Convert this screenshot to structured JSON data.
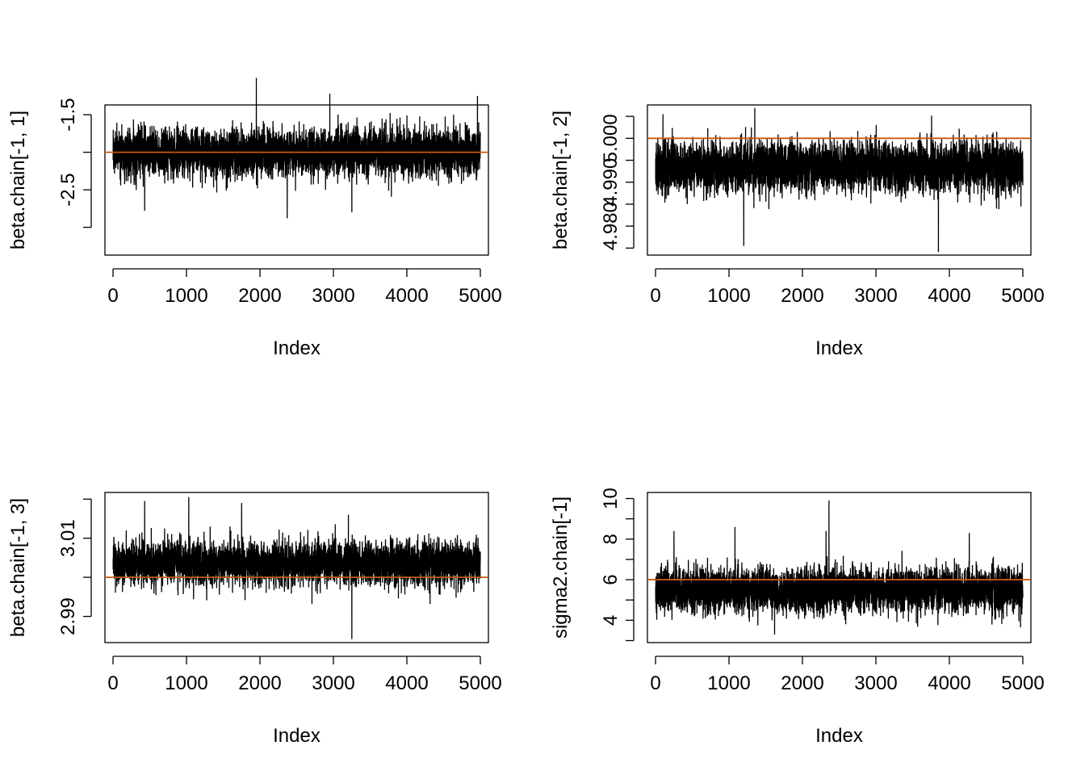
{
  "chart_data": [
    {
      "type": "line",
      "title": "",
      "xlabel": "Index",
      "ylabel": "beta.chain[-1, 1]",
      "xlim": [
        -110,
        5110
      ],
      "ylim": [
        -3.37,
        -1.37
      ],
      "xticks": [
        0,
        1000,
        2000,
        3000,
        4000,
        5000
      ],
      "xtick_labels": [
        "0",
        "1000",
        "2000",
        "3000",
        "4000",
        "5000"
      ],
      "yticks": [
        -3.0,
        -2.5,
        -2.0,
        -1.5
      ],
      "ytick_labels": [
        "",
        "-2.5",
        "",
        "-1.5"
      ],
      "hline": -2.0,
      "hline_color": "#C55A11",
      "series": [
        {
          "n": 5000,
          "center": -2.0,
          "sd": 0.16,
          "min": -2.88,
          "max": -1.01,
          "spikes": [
            [
              1950,
              -1.01
            ],
            [
              2370,
              -2.88
            ],
            [
              2950,
              -1.22
            ],
            [
              4960,
              -1.25
            ],
            [
              430,
              -2.78
            ],
            [
              3250,
              -2.8
            ]
          ]
        }
      ]
    },
    {
      "type": "line",
      "title": "",
      "xlabel": "Index",
      "ylabel": "beta.chain[-1, 2]",
      "xlim": [
        -110,
        5110
      ],
      "ylim": [
        4.9734,
        5.0076
      ],
      "xticks": [
        0,
        1000,
        2000,
        3000,
        4000,
        5000
      ],
      "xtick_labels": [
        "0",
        "1000",
        "2000",
        "3000",
        "4000",
        "5000"
      ],
      "yticks": [
        4.975,
        4.98,
        4.985,
        4.99,
        4.995,
        5.0,
        5.005
      ],
      "ytick_labels": [
        "",
        "4.980",
        "",
        "4.990",
        "",
        "5.000",
        ""
      ],
      "hline": 5.0,
      "hline_color": "#C55A11",
      "series": [
        {
          "n": 5000,
          "center": 4.9935,
          "sd": 0.0028,
          "min": 4.9741,
          "max": 5.0069,
          "spikes": [
            [
              1350,
              5.0069
            ],
            [
              3850,
              4.9741
            ],
            [
              1200,
              4.9755
            ],
            [
              100,
              5.0055
            ]
          ]
        }
      ]
    },
    {
      "type": "line",
      "title": "",
      "xlabel": "Index",
      "ylabel": "beta.chain[-1, 3]",
      "xlim": [
        -110,
        5110
      ],
      "ylim": [
        2.9833,
        3.0217
      ],
      "xticks": [
        0,
        1000,
        2000,
        3000,
        4000,
        5000
      ],
      "xtick_labels": [
        "0",
        "1000",
        "2000",
        "3000",
        "4000",
        "5000"
      ],
      "yticks": [
        2.99,
        3.0,
        3.01,
        3.02
      ],
      "ytick_labels": [
        "2.99",
        "",
        "3.01",
        ""
      ],
      "hline": 3.0,
      "hline_color": "#C55A11",
      "series": [
        {
          "n": 5000,
          "center": 3.0036,
          "sd": 0.0028,
          "min": 2.9842,
          "max": 3.0205,
          "spikes": [
            [
              1030,
              3.0205
            ],
            [
              3250,
              2.9842
            ],
            [
              430,
              3.0195
            ],
            [
              1750,
              3.019
            ]
          ]
        }
      ]
    },
    {
      "type": "line",
      "title": "",
      "xlabel": "Index",
      "ylabel": "sigma2.chain[-1]",
      "xlim": [
        -110,
        5110
      ],
      "ylim": [
        2.9,
        10.3
      ],
      "xticks": [
        0,
        1000,
        2000,
        3000,
        4000,
        5000
      ],
      "xtick_labels": [
        "0",
        "1000",
        "2000",
        "3000",
        "4000",
        "5000"
      ],
      "yticks": [
        3,
        4,
        5,
        6,
        7,
        8,
        9,
        10
      ],
      "ytick_labels": [
        "",
        "4",
        "",
        "6",
        "",
        "8",
        "",
        "10"
      ],
      "hline": 6.0,
      "hline_color": "#C55A11",
      "series": [
        {
          "n": 5000,
          "center": 5.5,
          "sd": 0.55,
          "min": 3.3,
          "max": 9.9,
          "spikes": [
            [
              2360,
              9.9
            ],
            [
              1620,
              3.3
            ],
            [
              1080,
              8.6
            ],
            [
              4270,
              8.3
            ],
            [
              250,
              8.4
            ],
            [
              2320,
              8.4
            ]
          ]
        }
      ]
    }
  ]
}
